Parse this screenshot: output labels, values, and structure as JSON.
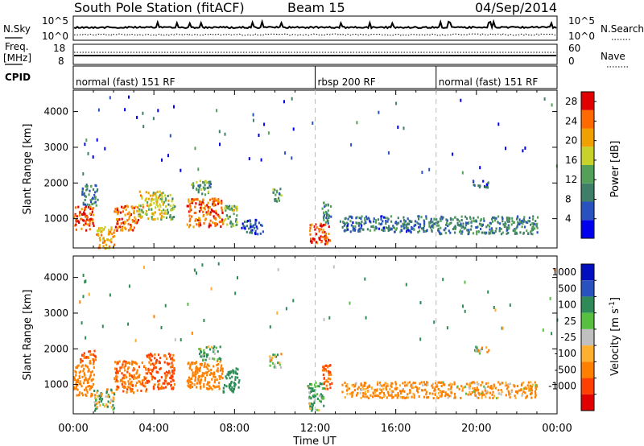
{
  "header": {
    "station": "South Pole Station (fitACF)",
    "beam": "Beam 15",
    "date": "04/Sep/2014"
  },
  "labels": {
    "nsky": "N.Sky",
    "nsearch": "N.Search",
    "freq": "Freq.",
    "freq_unit": "[MHz]",
    "nave": "Nave",
    "cpid": "CPID",
    "noise_tick_hi": "10^5",
    "noise_tick_lo": "10^0",
    "noise_tick_hi_r": "10^5",
    "noise_tick_lo_r": "10^0",
    "freq_tick_hi": "18",
    "freq_tick_lo": "8",
    "nave_tick_hi": "60",
    "nave_tick_lo": "0"
  },
  "cpid_segments": [
    {
      "label": "normal (fast) 151 RF",
      "start_hour": 0,
      "end_hour": 12
    },
    {
      "label": "rbsp 200 RF",
      "start_hour": 12,
      "end_hour": 18
    },
    {
      "label": "normal (fast) 151 RF",
      "start_hour": 18,
      "end_hour": 24
    }
  ],
  "colors": {
    "power_scale": [
      "#0000ee",
      "#2a52be",
      "#3f7f6a",
      "#55a058",
      "#c8d22a",
      "#f0a000",
      "#ff6a00",
      "#e00000"
    ],
    "velocity_scale": [
      "#e00000",
      "#ff4000",
      "#ff8000",
      "#ffb030",
      "#c0c0c0",
      "#58c040",
      "#2e8b57",
      "#2a52be",
      "#0010c0"
    ]
  },
  "chart_data": [
    {
      "type": "heatmap",
      "name": "power",
      "ylabel": "Slant Range [km]",
      "xlabel": "Time UT",
      "xlim": [
        0,
        24
      ],
      "ylim": [
        180,
        4600
      ],
      "x_ticks": [
        "00:00",
        "04:00",
        "08:00",
        "12:00",
        "16:00",
        "20:00",
        "00:00"
      ],
      "y_ticks": [
        1000,
        2000,
        3000,
        4000
      ],
      "colorbar": {
        "label": "Power [dB]",
        "ticks": [
          4,
          8,
          12,
          16,
          20,
          24,
          28
        ],
        "range": [
          0,
          30
        ]
      },
      "echo_regions": [
        {
          "t0": 0.0,
          "t1": 1.0,
          "r0": 700,
          "r1": 1400,
          "value": 26
        },
        {
          "t0": 0.4,
          "t1": 1.2,
          "r0": 1400,
          "r1": 2000,
          "value": 10
        },
        {
          "t0": 1.1,
          "t1": 2.0,
          "r0": 200,
          "r1": 800,
          "value": 20
        },
        {
          "t0": 2.0,
          "t1": 3.2,
          "r0": 700,
          "r1": 1400,
          "value": 24
        },
        {
          "t0": 3.2,
          "t1": 4.5,
          "r0": 1000,
          "r1": 1800,
          "value": 18
        },
        {
          "t0": 4.5,
          "t1": 5.0,
          "r0": 1000,
          "r1": 1700,
          "value": 14
        },
        {
          "t0": 5.6,
          "t1": 7.4,
          "r0": 800,
          "r1": 1600,
          "value": 24
        },
        {
          "t0": 5.8,
          "t1": 6.8,
          "r0": 1700,
          "r1": 2100,
          "value": 12
        },
        {
          "t0": 7.4,
          "t1": 8.1,
          "r0": 800,
          "r1": 1400,
          "value": 14
        },
        {
          "t0": 8.3,
          "t1": 9.4,
          "r0": 600,
          "r1": 1000,
          "value": 6
        },
        {
          "t0": 9.8,
          "t1": 10.3,
          "r0": 1500,
          "r1": 1900,
          "value": 12
        },
        {
          "t0": 11.7,
          "t1": 12.7,
          "r0": 300,
          "r1": 900,
          "value": 26
        },
        {
          "t0": 12.3,
          "t1": 12.8,
          "r0": 900,
          "r1": 1500,
          "value": 10
        },
        {
          "t0": 13.2,
          "t1": 18.0,
          "r0": 650,
          "r1": 1100,
          "value": 8
        },
        {
          "t0": 18.0,
          "t1": 23.0,
          "r0": 600,
          "r1": 1100,
          "value": 10
        },
        {
          "t0": 19.8,
          "t1": 20.6,
          "r0": 1900,
          "r1": 2100,
          "value": 6
        }
      ]
    },
    {
      "type": "heatmap",
      "name": "velocity",
      "ylabel": "Slant Range [km]",
      "xlabel": "Time UT",
      "xlim": [
        0,
        24
      ],
      "ylim": [
        180,
        4600
      ],
      "x_ticks": [
        "00:00",
        "04:00",
        "08:00",
        "12:00",
        "16:00",
        "20:00",
        "00:00"
      ],
      "y_ticks": [
        1000,
        2000,
        3000,
        4000
      ],
      "colorbar": {
        "label": "Velocity [m s^-1]",
        "ticks": [
          1000,
          500,
          100,
          25,
          -25,
          -100,
          -500,
          -1000
        ]
      },
      "echo_regions": [
        {
          "t0": 0.0,
          "t1": 1.0,
          "r0": 700,
          "r1": 1600,
          "value": -300
        },
        {
          "t0": 0.3,
          "t1": 1.1,
          "r0": 1600,
          "r1": 2000,
          "value": -500
        },
        {
          "t0": 1.0,
          "t1": 2.0,
          "r0": 300,
          "r1": 900,
          "value": 60
        },
        {
          "t0": 2.0,
          "t1": 3.6,
          "r0": 800,
          "r1": 1700,
          "value": -400
        },
        {
          "t0": 3.6,
          "t1": 5.0,
          "r0": 900,
          "r1": 1900,
          "value": -600
        },
        {
          "t0": 5.6,
          "t1": 7.4,
          "r0": 900,
          "r1": 1700,
          "value": -300
        },
        {
          "t0": 6.2,
          "t1": 7.3,
          "r0": 1700,
          "r1": 2100,
          "value": 120
        },
        {
          "t0": 7.4,
          "t1": 8.2,
          "r0": 800,
          "r1": 1500,
          "value": 300
        },
        {
          "t0": 9.7,
          "t1": 10.3,
          "r0": 1500,
          "r1": 1900,
          "value": 20
        },
        {
          "t0": 11.6,
          "t1": 12.4,
          "r0": 300,
          "r1": 1100,
          "value": 150
        },
        {
          "t0": 12.3,
          "t1": 12.8,
          "r0": 900,
          "r1": 1600,
          "value": -500
        },
        {
          "t0": 13.3,
          "t1": 18.0,
          "r0": 650,
          "r1": 1100,
          "value": -200
        },
        {
          "t0": 18.0,
          "t1": 23.0,
          "r0": 650,
          "r1": 1100,
          "value": -150
        },
        {
          "t0": 19.8,
          "t1": 20.6,
          "r0": 1900,
          "r1": 2100,
          "value": 20
        }
      ]
    }
  ],
  "xaxis": {
    "label": "Time UT"
  }
}
